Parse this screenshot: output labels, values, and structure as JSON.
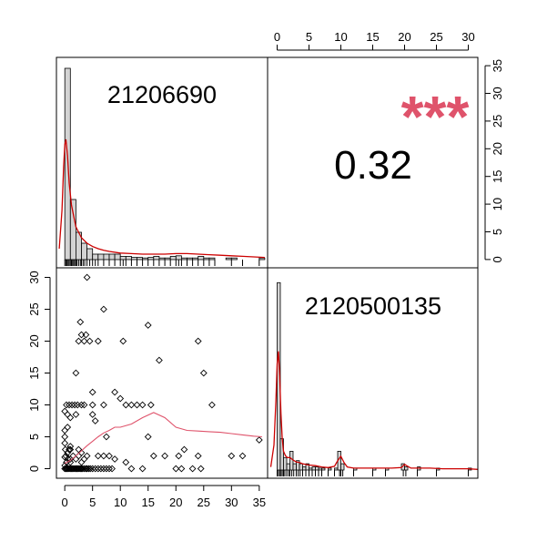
{
  "chart_data": [
    {
      "type": "bar",
      "panel": "diagonal-top-left",
      "title": "21206690",
      "description_kind": "histogram with density line and rug",
      "bins": [
        {
          "x0": 0,
          "x1": 1,
          "count": 35
        },
        {
          "x0": 1,
          "x1": 2,
          "count": 11
        },
        {
          "x0": 2,
          "x1": 3,
          "count": 5
        },
        {
          "x0": 3,
          "x1": 4,
          "count": 3
        },
        {
          "x0": 4,
          "x1": 5,
          "count": 2
        },
        {
          "x0": 5,
          "x1": 6,
          "count": 1
        },
        {
          "x0": 6,
          "x1": 7,
          "count": 1
        },
        {
          "x0": 7,
          "x1": 8,
          "count": 1
        },
        {
          "x0": 8,
          "x1": 9,
          "count": 1
        },
        {
          "x0": 9,
          "x1": 10,
          "count": 1
        },
        {
          "x0": 10,
          "x1": 11,
          "count": 0.6
        },
        {
          "x0": 11,
          "x1": 12,
          "count": 0.6
        },
        {
          "x0": 12,
          "x1": 13,
          "count": 0.4
        },
        {
          "x0": 13,
          "x1": 14,
          "count": 0.4
        },
        {
          "x0": 14,
          "x1": 15,
          "count": 0.3
        },
        {
          "x0": 15,
          "x1": 16,
          "count": 0.4
        },
        {
          "x0": 16,
          "x1": 17,
          "count": 0.6
        },
        {
          "x0": 17,
          "x1": 18,
          "count": 0.3
        },
        {
          "x0": 18,
          "x1": 19,
          "count": 0.3
        },
        {
          "x0": 19,
          "x1": 20,
          "count": 0.6
        },
        {
          "x0": 20,
          "x1": 21,
          "count": 0.7
        },
        {
          "x0": 21,
          "x1": 22,
          "count": 0.3
        },
        {
          "x0": 22,
          "x1": 23,
          "count": 0.3
        },
        {
          "x0": 23,
          "x1": 24,
          "count": 0.3
        },
        {
          "x0": 24,
          "x1": 25,
          "count": 0.6
        },
        {
          "x0": 25,
          "x1": 26,
          "count": 0.3
        },
        {
          "x0": 26,
          "x1": 27,
          "count": 0.3
        },
        {
          "x0": 29,
          "x1": 30,
          "count": 0.3
        },
        {
          "x0": 30,
          "x1": 31,
          "count": 0.3
        },
        {
          "x0": 35,
          "x1": 36,
          "count": 0.3
        }
      ],
      "density": {
        "x": [
          -1,
          -0.5,
          -0.2,
          0,
          0.2,
          0.5,
          0.8,
          1.2,
          1.6,
          2,
          2.5,
          3,
          4,
          5,
          6,
          7,
          8,
          10,
          12,
          14,
          16,
          18,
          20,
          22,
          24,
          26,
          28,
          30,
          32,
          34,
          36
        ],
        "y": [
          2,
          9,
          17,
          21,
          22,
          19,
          14,
          10,
          8,
          6,
          5,
          4,
          3,
          2.4,
          2,
          1.7,
          1.5,
          1.2,
          1.1,
          1,
          1,
          1,
          1.1,
          1.1,
          1,
          0.9,
          0.8,
          0.7,
          0.6,
          0.5,
          0.4
        ]
      },
      "rug": [
        0,
        0.2,
        0.4,
        0.6,
        0.8,
        1,
        1.2,
        1.4,
        1.6,
        1.8,
        2,
        2.2,
        2.5,
        2.8,
        3,
        3.3,
        3.6,
        4,
        4.5,
        5,
        5.5,
        6,
        7,
        8,
        9,
        10,
        10.5,
        11,
        12,
        13,
        14,
        15,
        16,
        17,
        18,
        19,
        20,
        20.5,
        21,
        22,
        23,
        24,
        25,
        26,
        27,
        30,
        32,
        35
      ],
      "xlim": [
        -1.5,
        36.5
      ],
      "ylim": [
        0,
        36
      ]
    },
    {
      "type": "table",
      "panel": "upper-right-correlation",
      "correlation": "0.32",
      "significance": "***",
      "axis_x_ticks": [
        "0",
        "5",
        "10",
        "15",
        "20",
        "25",
        "30"
      ],
      "axis_y_ticks": [
        "0",
        "5",
        "10",
        "15",
        "20",
        "25",
        "30",
        "35"
      ],
      "xlim": [
        -1.5,
        31.5
      ],
      "ylim": [
        -1.5,
        36.5
      ]
    },
    {
      "type": "scatter",
      "panel": "lower-left-scatter",
      "x_ticks": [
        "0",
        "5",
        "10",
        "15",
        "20",
        "25",
        "30",
        "35"
      ],
      "y_ticks": [
        "0",
        "5",
        "10",
        "15",
        "20",
        "25",
        "30"
      ],
      "xlim": [
        -1.5,
        36.5
      ],
      "ylim": [
        -1.5,
        31.5
      ],
      "points": [
        [
          0,
          0
        ],
        [
          0.2,
          0
        ],
        [
          0.4,
          0
        ],
        [
          0.6,
          0
        ],
        [
          0.8,
          0
        ],
        [
          1,
          0
        ],
        [
          1.2,
          0
        ],
        [
          1.4,
          0
        ],
        [
          1.6,
          0
        ],
        [
          1.8,
          0
        ],
        [
          2,
          0
        ],
        [
          2.2,
          0
        ],
        [
          2.4,
          0
        ],
        [
          2.6,
          0
        ],
        [
          2.8,
          0
        ],
        [
          3,
          0
        ],
        [
          3.2,
          0
        ],
        [
          3.5,
          0
        ],
        [
          3.8,
          0
        ],
        [
          4,
          0
        ],
        [
          4.3,
          0
        ],
        [
          4.6,
          0
        ],
        [
          5,
          0
        ],
        [
          5.5,
          0
        ],
        [
          6,
          0
        ],
        [
          6.5,
          0
        ],
        [
          7,
          0
        ],
        [
          7.5,
          0
        ],
        [
          8,
          0
        ],
        [
          8.5,
          0
        ],
        [
          12,
          0
        ],
        [
          14,
          0
        ],
        [
          20,
          0
        ],
        [
          21,
          0
        ],
        [
          24.5,
          0
        ],
        [
          0,
          0.5
        ],
        [
          0.3,
          1
        ],
        [
          0.6,
          1.5
        ],
        [
          1,
          1
        ],
        [
          0.2,
          2
        ],
        [
          0.5,
          2.5
        ],
        [
          0.1,
          3
        ],
        [
          0.8,
          3
        ],
        [
          1.5,
          2
        ],
        [
          2,
          1.5
        ],
        [
          2.5,
          2
        ],
        [
          3,
          1
        ],
        [
          3.5,
          1.5
        ],
        [
          1,
          3.5
        ],
        [
          0,
          4
        ],
        [
          0,
          5
        ],
        [
          0,
          6
        ],
        [
          0.5,
          6.5
        ],
        [
          0.3,
          10
        ],
        [
          0.8,
          10
        ],
        [
          1.3,
          10
        ],
        [
          1.8,
          10
        ],
        [
          2.3,
          10
        ],
        [
          3,
          10
        ],
        [
          3.5,
          10
        ],
        [
          5,
          10
        ],
        [
          7,
          10
        ],
        [
          12,
          10
        ],
        [
          13,
          10
        ],
        [
          15.5,
          10
        ],
        [
          26.5,
          10
        ],
        [
          0,
          9
        ],
        [
          0.5,
          8.5
        ],
        [
          1,
          8
        ],
        [
          2,
          8.5
        ],
        [
          5,
          8.5
        ],
        [
          5.5,
          7.5
        ],
        [
          1,
          3
        ],
        [
          2.5,
          3
        ],
        [
          3,
          2.5
        ],
        [
          4,
          2
        ],
        [
          6,
          2
        ],
        [
          7,
          2
        ],
        [
          7.5,
          5
        ],
        [
          8,
          2
        ],
        [
          9,
          1.5
        ],
        [
          11,
          1
        ],
        [
          15,
          5
        ],
        [
          16,
          2
        ],
        [
          18,
          2
        ],
        [
          21.5,
          3
        ],
        [
          24,
          2
        ],
        [
          30,
          2
        ],
        [
          32,
          2
        ],
        [
          35,
          4.5
        ],
        [
          2,
          15
        ],
        [
          2.5,
          20
        ],
        [
          2.8,
          23
        ],
        [
          3,
          21
        ],
        [
          3.5,
          20
        ],
        [
          3.8,
          21
        ],
        [
          4,
          30
        ],
        [
          4.5,
          20
        ],
        [
          6,
          20
        ],
        [
          7,
          25
        ],
        [
          10.5,
          20
        ],
        [
          15,
          22.5
        ],
        [
          17,
          17
        ],
        [
          24,
          20
        ],
        [
          25,
          15
        ],
        [
          5,
          12
        ],
        [
          9,
          12
        ],
        [
          10,
          11
        ],
        [
          11,
          10
        ],
        [
          14,
          10
        ],
        [
          20.5,
          2
        ],
        [
          23,
          0
        ],
        [
          1,
          1.5
        ],
        [
          0,
          1.8
        ]
      ],
      "smooth": {
        "x": [
          0,
          1,
          2,
          3,
          4,
          5,
          6,
          7,
          8,
          9,
          10,
          12,
          14,
          16,
          18,
          20,
          22,
          24,
          26,
          28,
          30,
          32,
          34,
          35.5
        ],
        "y": [
          0.8,
          1.3,
          2.0,
          2.8,
          3.6,
          4.3,
          5.0,
          5.6,
          6.0,
          6.5,
          6.5,
          7.0,
          8.0,
          8.8,
          8.0,
          6.5,
          6.0,
          5.9,
          5.8,
          5.7,
          5.5,
          5.3,
          5.1,
          5.0
        ]
      }
    },
    {
      "type": "bar",
      "panel": "diagonal-bottom-right",
      "title": "2120500135",
      "description_kind": "histogram with density line and rug",
      "bins": [
        {
          "x0": 0,
          "x1": 0.5,
          "count": 30
        },
        {
          "x0": 0.5,
          "x1": 1,
          "count": 5
        },
        {
          "x0": 1,
          "x1": 1.5,
          "count": 2
        },
        {
          "x0": 1.5,
          "x1": 2,
          "count": 1
        },
        {
          "x0": 2,
          "x1": 2.5,
          "count": 3
        },
        {
          "x0": 2.5,
          "x1": 3,
          "count": 1
        },
        {
          "x0": 3,
          "x1": 3.5,
          "count": 1.5
        },
        {
          "x0": 3.5,
          "x1": 4,
          "count": 1
        },
        {
          "x0": 4,
          "x1": 4.5,
          "count": 0.5
        },
        {
          "x0": 4.5,
          "x1": 5,
          "count": 1
        },
        {
          "x0": 5,
          "x1": 5.5,
          "count": 0.3
        },
        {
          "x0": 5.5,
          "x1": 6,
          "count": 0.5
        },
        {
          "x0": 6,
          "x1": 6.5,
          "count": 0.5
        },
        {
          "x0": 6.5,
          "x1": 7,
          "count": 0.3
        },
        {
          "x0": 7,
          "x1": 7.5,
          "count": 0.3
        },
        {
          "x0": 8,
          "x1": 8.5,
          "count": 0.3
        },
        {
          "x0": 9,
          "x1": 9.5,
          "count": 0.3
        },
        {
          "x0": 9.5,
          "x1": 10,
          "count": 3
        },
        {
          "x0": 10,
          "x1": 10.5,
          "count": 1
        },
        {
          "x0": 12,
          "x1": 12.5,
          "count": 0.3
        },
        {
          "x0": 15,
          "x1": 15.5,
          "count": 0.3
        },
        {
          "x0": 17,
          "x1": 17.5,
          "count": 0.3
        },
        {
          "x0": 19.5,
          "x1": 20,
          "count": 1
        },
        {
          "x0": 20,
          "x1": 20.5,
          "count": 0.5
        },
        {
          "x0": 22,
          "x1": 22.5,
          "count": 0.5
        },
        {
          "x0": 25,
          "x1": 25.5,
          "count": 0.3
        },
        {
          "x0": 30,
          "x1": 30.5,
          "count": 0.3
        }
      ],
      "density": {
        "x": [
          -1,
          -0.5,
          -0.2,
          0,
          0.2,
          0.4,
          0.6,
          0.8,
          1,
          1.3,
          1.6,
          2,
          2.5,
          3,
          3.5,
          4,
          5,
          6,
          7,
          8,
          9,
          9.5,
          10,
          10.5,
          11,
          12,
          14,
          16,
          18,
          19.5,
          20,
          20.5,
          21,
          22,
          24,
          26,
          28,
          30,
          31.5
        ],
        "y": [
          0.5,
          4,
          11,
          17,
          19,
          15,
          9,
          5,
          3,
          2.3,
          2,
          2,
          1.6,
          1.3,
          1.2,
          1,
          0.8,
          0.7,
          0.5,
          0.4,
          0.6,
          1.5,
          2.2,
          1.2,
          0.5,
          0.3,
          0.3,
          0.3,
          0.3,
          0.4,
          0.9,
          0.6,
          0.3,
          0.3,
          0.3,
          0.2,
          0.2,
          0.2,
          0.1
        ]
      },
      "rug": [
        0,
        0.2,
        0.4,
        0.6,
        0.8,
        1,
        1.2,
        1.5,
        1.8,
        2,
        2.3,
        2.6,
        3,
        3.3,
        3.6,
        4,
        4.5,
        5,
        5.5,
        6,
        6.5,
        7,
        8,
        9,
        9.8,
        10,
        10.3,
        12,
        15,
        17,
        19.8,
        20.2,
        22,
        25,
        30
      ],
      "xlim": [
        -1.5,
        31.5
      ],
      "ylim": [
        0,
        31.5
      ]
    }
  ]
}
